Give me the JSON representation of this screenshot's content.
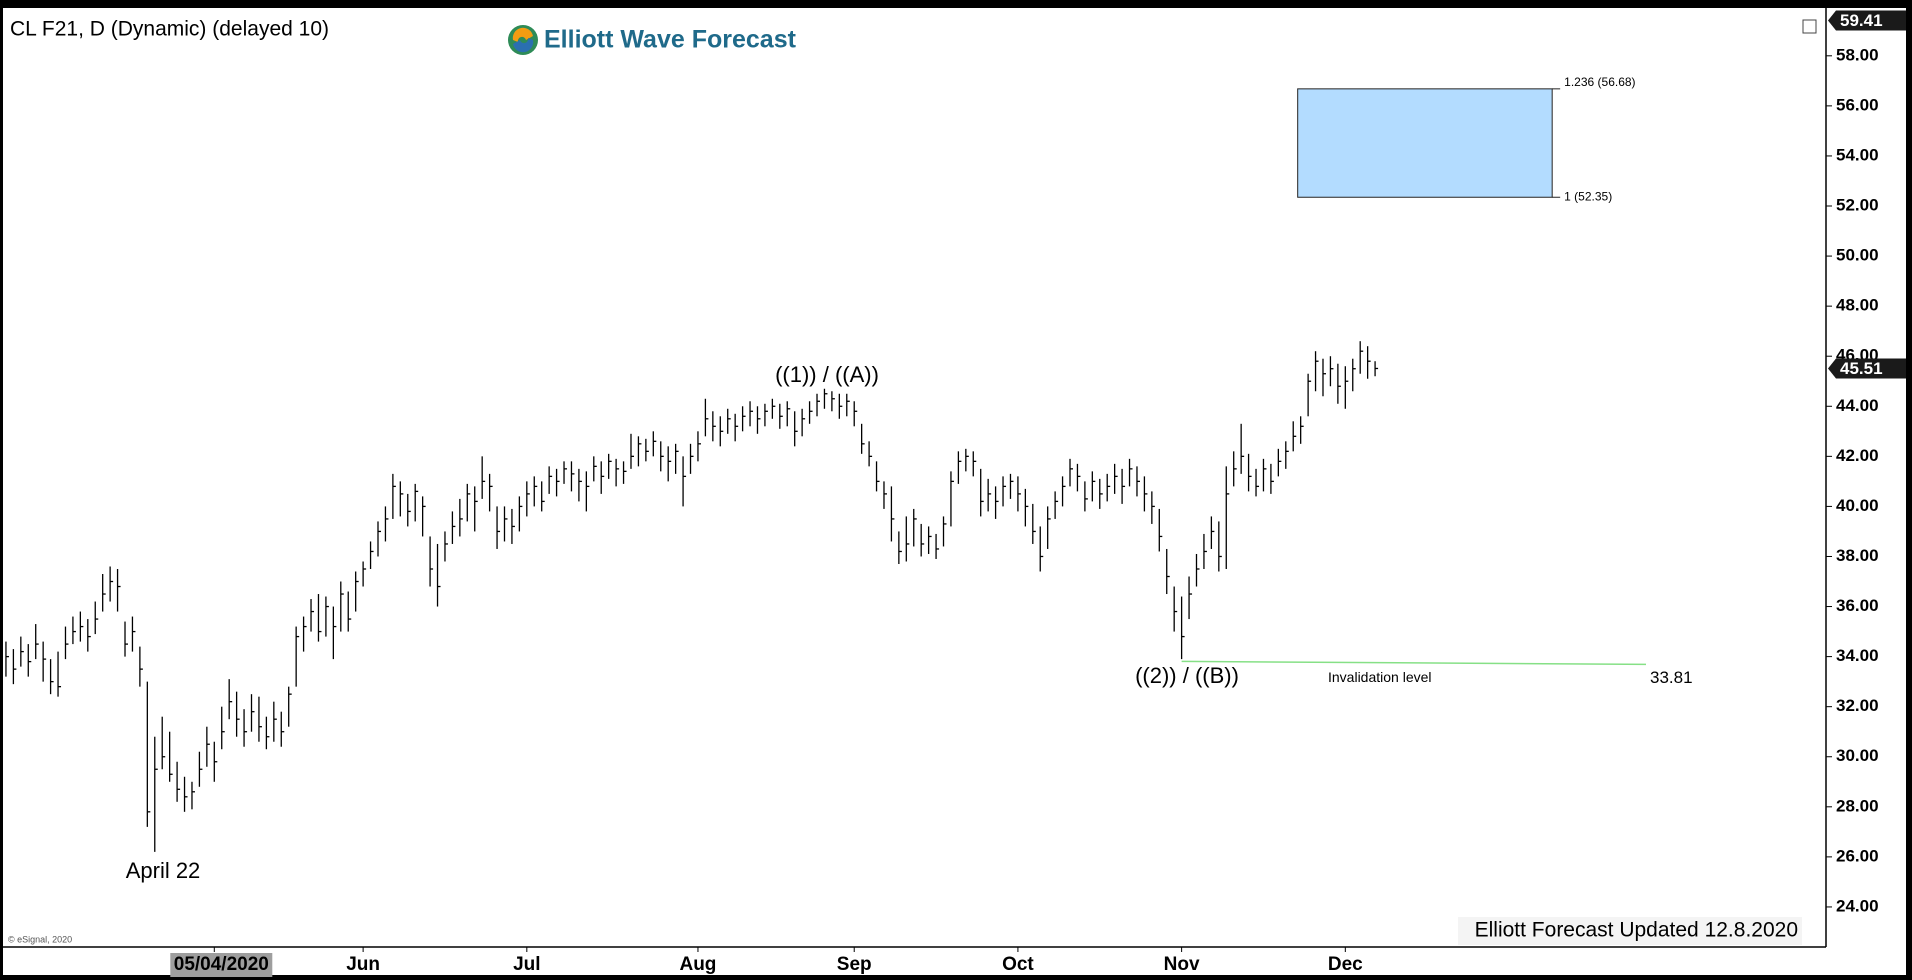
{
  "chart_data": {
    "type": "ohlc",
    "title": "CL F21, D (Dynamic) (delayed 10)",
    "brand": "Elliott Wave Forecast",
    "copyright": "© eSignal, 2020",
    "footer": "Elliott Forecast Updated 12.8.2020",
    "annotations": [
      "April 22",
      "((1)) / ((A))",
      "((2)) / ((B))"
    ],
    "target_zone": {
      "high": 56.68,
      "low": 52.35,
      "high_label": "1.236 (56.68)",
      "low_label": "1 (52.35)",
      "color": "#b3dcff"
    },
    "invalidation": {
      "value": 33.81,
      "label": "Invalidation level",
      "color": "#86e086"
    },
    "last_price": 45.51,
    "top_price": 59.41,
    "bar_color": "#000000",
    "ylim": [
      22.4,
      59.75
    ],
    "xlim": [
      -0.8,
      244.6
    ],
    "yticks": [
      {
        "value": 24,
        "label": "24.00"
      },
      {
        "value": 26,
        "label": "26.00"
      },
      {
        "value": 28,
        "label": "28.00"
      },
      {
        "value": 30,
        "label": "30.00"
      },
      {
        "value": 32,
        "label": "32.00"
      },
      {
        "value": 34,
        "label": "34.00"
      },
      {
        "value": 36,
        "label": "36.00"
      },
      {
        "value": 38,
        "label": "38.00"
      },
      {
        "value": 40,
        "label": "40.00"
      },
      {
        "value": 42,
        "label": "42.00"
      },
      {
        "value": 44,
        "label": "44.00"
      },
      {
        "value": 46,
        "label": "46.00"
      },
      {
        "value": 48,
        "label": "48.00"
      },
      {
        "value": 50,
        "label": "50.00"
      },
      {
        "value": 52,
        "label": "52.00"
      },
      {
        "value": 54,
        "label": "54.00"
      },
      {
        "value": 56,
        "label": "56.00"
      },
      {
        "value": 58,
        "label": "58.00"
      }
    ],
    "xticks": [
      {
        "value": 28,
        "label": "05/04/2020"
      },
      {
        "value": 48,
        "label": "Jun"
      },
      {
        "value": 70,
        "label": "Jul"
      },
      {
        "value": 93,
        "label": "Aug"
      },
      {
        "value": 114,
        "label": "Sep"
      },
      {
        "value": 136,
        "label": "Oct"
      },
      {
        "value": 158,
        "label": "Nov"
      },
      {
        "value": 180,
        "label": "Dec"
      }
    ],
    "bars": [
      [
        34.6,
        33.2,
        34.0
      ],
      [
        34.3,
        32.9,
        33.5
      ],
      [
        34.8,
        33.6,
        34.2
      ],
      [
        34.5,
        33.2,
        33.8
      ],
      [
        35.3,
        33.9,
        34.5
      ],
      [
        34.6,
        33.0,
        33.9
      ],
      [
        33.9,
        32.5,
        33.0
      ],
      [
        34.2,
        32.4,
        32.8
      ],
      [
        35.2,
        33.9,
        34.5
      ],
      [
        35.6,
        34.5,
        35.0
      ],
      [
        35.8,
        34.6,
        35.2
      ],
      [
        35.5,
        34.2,
        34.8
      ],
      [
        36.2,
        34.9,
        35.5
      ],
      [
        37.3,
        35.8,
        36.5
      ],
      [
        37.6,
        36.2,
        37.0
      ],
      [
        37.5,
        35.8,
        36.8
      ],
      [
        35.4,
        34.0,
        34.5
      ],
      [
        35.6,
        34.2,
        35.0
      ],
      [
        34.4,
        32.8,
        33.5
      ],
      [
        33.0,
        27.2,
        27.8
      ],
      [
        30.8,
        26.2,
        29.5
      ],
      [
        31.6,
        29.5,
        30.0
      ],
      [
        31.0,
        29.0,
        29.3
      ],
      [
        29.8,
        28.2,
        28.7
      ],
      [
        29.2,
        27.8,
        28.4
      ],
      [
        29.0,
        27.9,
        28.6
      ],
      [
        30.2,
        28.8,
        29.5
      ],
      [
        31.2,
        29.6,
        30.5
      ],
      [
        30.6,
        29.0,
        29.8
      ],
      [
        32.0,
        30.3,
        31.0
      ],
      [
        33.1,
        31.5,
        32.2
      ],
      [
        32.6,
        30.8,
        31.5
      ],
      [
        31.9,
        30.4,
        31.0
      ],
      [
        32.5,
        31.0,
        31.8
      ],
      [
        32.4,
        30.6,
        31.2
      ],
      [
        31.6,
        30.3,
        30.8
      ],
      [
        32.2,
        30.6,
        31.5
      ],
      [
        31.8,
        30.4,
        31.0
      ],
      [
        32.8,
        31.2,
        32.5
      ],
      [
        35.2,
        32.8,
        34.8
      ],
      [
        35.6,
        34.2,
        35.2
      ],
      [
        36.3,
        35.0,
        35.8
      ],
      [
        36.5,
        34.6,
        35.0
      ],
      [
        36.4,
        34.8,
        36.0
      ],
      [
        36.0,
        33.9,
        35.2
      ],
      [
        37.0,
        35.0,
        36.5
      ],
      [
        36.6,
        35.0,
        35.5
      ],
      [
        37.4,
        35.8,
        37.0
      ],
      [
        37.8,
        36.8,
        37.5
      ],
      [
        38.6,
        37.5,
        38.2
      ],
      [
        39.4,
        38.0,
        39.0
      ],
      [
        40.0,
        38.6,
        39.5
      ],
      [
        41.3,
        39.5,
        40.8
      ],
      [
        41.0,
        39.6,
        40.5
      ],
      [
        40.5,
        39.2,
        39.8
      ],
      [
        40.9,
        39.4,
        40.6
      ],
      [
        40.4,
        38.8,
        40.0
      ],
      [
        38.8,
        36.8,
        37.5
      ],
      [
        38.5,
        36.0,
        36.8
      ],
      [
        39.0,
        37.8,
        38.5
      ],
      [
        39.8,
        38.5,
        39.2
      ],
      [
        40.3,
        38.8,
        39.5
      ],
      [
        40.9,
        39.4,
        40.5
      ],
      [
        40.8,
        39.0,
        40.2
      ],
      [
        42.0,
        40.3,
        41.0
      ],
      [
        41.3,
        39.8,
        40.8
      ],
      [
        40.0,
        38.3,
        39.0
      ],
      [
        40.0,
        38.6,
        39.5
      ],
      [
        39.9,
        38.5,
        39.2
      ],
      [
        40.4,
        39.0,
        40.0
      ],
      [
        41.0,
        39.6,
        40.5
      ],
      [
        41.2,
        40.0,
        40.8
      ],
      [
        41.0,
        39.8,
        40.2
      ],
      [
        41.6,
        40.5,
        41.2
      ],
      [
        41.5,
        40.4,
        41.0
      ],
      [
        41.8,
        40.9,
        41.5
      ],
      [
        41.8,
        40.6,
        41.3
      ],
      [
        41.5,
        40.2,
        41.0
      ],
      [
        41.4,
        39.8,
        40.8
      ],
      [
        42.0,
        41.0,
        41.6
      ],
      [
        41.8,
        40.5,
        41.2
      ],
      [
        42.1,
        41.1,
        41.8
      ],
      [
        41.9,
        40.8,
        41.5
      ],
      [
        41.8,
        40.9,
        41.4
      ],
      [
        42.9,
        41.5,
        42.0
      ],
      [
        42.8,
        41.6,
        42.5
      ],
      [
        42.7,
        41.8,
        42.2
      ],
      [
        43.0,
        42.0,
        42.6
      ],
      [
        42.6,
        41.4,
        42.0
      ],
      [
        42.4,
        41.0,
        41.8
      ],
      [
        42.5,
        41.3,
        42.2
      ],
      [
        42.0,
        40.0,
        41.2
      ],
      [
        42.5,
        41.3,
        42.0
      ],
      [
        43.0,
        41.8,
        42.5
      ],
      [
        44.3,
        42.8,
        43.5
      ],
      [
        43.8,
        42.6,
        43.2
      ],
      [
        43.6,
        42.4,
        43.0
      ],
      [
        43.9,
        42.9,
        43.5
      ],
      [
        43.7,
        42.6,
        43.2
      ],
      [
        44.0,
        43.0,
        43.6
      ],
      [
        44.2,
        43.2,
        43.8
      ],
      [
        44.0,
        42.9,
        43.5
      ],
      [
        44.1,
        43.2,
        43.8
      ],
      [
        44.3,
        43.5,
        44.0
      ],
      [
        44.1,
        43.1,
        43.6
      ],
      [
        44.2,
        43.2,
        43.9
      ],
      [
        43.8,
        42.4,
        43.0
      ],
      [
        43.9,
        42.8,
        43.5
      ],
      [
        44.2,
        43.3,
        43.8
      ],
      [
        44.5,
        43.6,
        44.2
      ],
      [
        44.7,
        43.9,
        44.5
      ],
      [
        44.6,
        43.8,
        44.3
      ],
      [
        44.5,
        43.5,
        44.0
      ],
      [
        44.5,
        43.6,
        44.2
      ],
      [
        44.2,
        43.2,
        43.8
      ],
      [
        43.3,
        42.1,
        42.5
      ],
      [
        42.6,
        41.6,
        42.0
      ],
      [
        41.8,
        40.6,
        41.0
      ],
      [
        41.0,
        39.9,
        40.5
      ],
      [
        40.8,
        38.6,
        39.5
      ],
      [
        39.0,
        37.7,
        38.2
      ],
      [
        39.6,
        37.8,
        38.5
      ],
      [
        39.9,
        38.4,
        39.5
      ],
      [
        39.3,
        38.0,
        38.5
      ],
      [
        39.2,
        38.1,
        38.8
      ],
      [
        38.9,
        37.9,
        38.3
      ],
      [
        39.6,
        38.4,
        39.3
      ],
      [
        41.4,
        39.2,
        41.0
      ],
      [
        42.2,
        40.9,
        41.8
      ],
      [
        42.3,
        41.4,
        42.0
      ],
      [
        42.2,
        41.2,
        41.8
      ],
      [
        41.5,
        39.6,
        40.2
      ],
      [
        41.1,
        39.8,
        40.5
      ],
      [
        40.8,
        39.5,
        40.2
      ],
      [
        41.2,
        40.0,
        40.8
      ],
      [
        41.3,
        40.3,
        41.0
      ],
      [
        41.2,
        39.8,
        40.5
      ],
      [
        40.7,
        39.2,
        40.0
      ],
      [
        40.1,
        38.5,
        39.0
      ],
      [
        39.2,
        37.4,
        38.0
      ],
      [
        40.0,
        38.3,
        39.5
      ],
      [
        40.6,
        39.5,
        40.2
      ],
      [
        41.2,
        40.0,
        40.8
      ],
      [
        41.9,
        40.8,
        41.5
      ],
      [
        41.7,
        40.6,
        41.2
      ],
      [
        41.0,
        39.8,
        40.3
      ],
      [
        41.4,
        40.2,
        41.0
      ],
      [
        41.1,
        39.9,
        40.5
      ],
      [
        41.3,
        40.2,
        40.8
      ],
      [
        41.7,
        40.5,
        41.2
      ],
      [
        41.5,
        40.1,
        40.8
      ],
      [
        41.9,
        40.8,
        41.5
      ],
      [
        41.6,
        40.4,
        41.0
      ],
      [
        41.2,
        39.8,
        40.5
      ],
      [
        40.6,
        39.3,
        40.0
      ],
      [
        39.9,
        38.2,
        38.8
      ],
      [
        38.3,
        36.5,
        37.2
      ],
      [
        36.8,
        35.0,
        35.8
      ],
      [
        36.4,
        33.9,
        34.8
      ],
      [
        37.2,
        35.5,
        36.5
      ],
      [
        38.1,
        36.8,
        37.5
      ],
      [
        38.9,
        37.5,
        38.2
      ],
      [
        39.6,
        38.3,
        39.0
      ],
      [
        39.4,
        37.4,
        38.0
      ],
      [
        41.6,
        37.5,
        40.5
      ],
      [
        42.2,
        40.8,
        41.5
      ],
      [
        43.3,
        41.3,
        42.0
      ],
      [
        42.1,
        40.6,
        41.2
      ],
      [
        41.5,
        40.4,
        40.8
      ],
      [
        41.9,
        40.6,
        41.5
      ],
      [
        41.7,
        40.5,
        41.0
      ],
      [
        42.3,
        41.2,
        41.8
      ],
      [
        42.6,
        41.5,
        42.2
      ],
      [
        43.4,
        42.2,
        42.8
      ],
      [
        43.6,
        42.5,
        43.2
      ],
      [
        45.3,
        43.6,
        45.0
      ],
      [
        46.2,
        44.6,
        45.8
      ],
      [
        45.9,
        44.4,
        45.3
      ],
      [
        46.0,
        44.8,
        45.5
      ],
      [
        45.7,
        44.1,
        44.8
      ],
      [
        45.6,
        43.9,
        45.0
      ],
      [
        45.9,
        44.6,
        45.5
      ],
      [
        46.6,
        45.3,
        46.2
      ],
      [
        46.4,
        45.1,
        45.8
      ],
      [
        45.8,
        45.2,
        45.51
      ]
    ]
  }
}
